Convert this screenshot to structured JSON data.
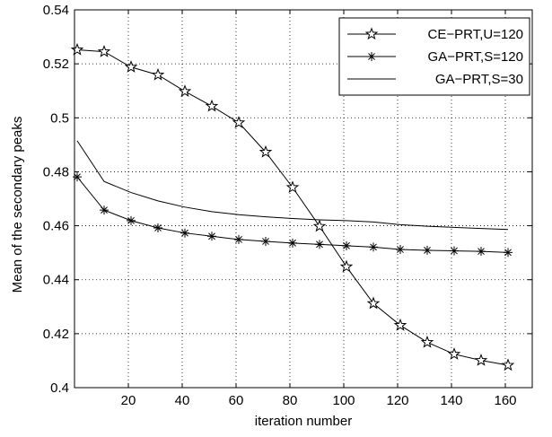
{
  "chart_data": {
    "type": "line",
    "title": "",
    "xlabel": "iteration number",
    "ylabel": "Mean of the secondary peaks",
    "xlim": [
      0,
      170
    ],
    "ylim": [
      0.4,
      0.54
    ],
    "xticks": [
      20,
      40,
      60,
      80,
      100,
      120,
      140,
      160
    ],
    "yticks": [
      0.4,
      0.42,
      0.44,
      0.46,
      0.48,
      0.5,
      0.52,
      0.54
    ],
    "xtick_labels": [
      "20",
      "40",
      "60",
      "80",
      "100",
      "120",
      "140",
      "160"
    ],
    "ytick_labels": [
      "0.4",
      "0.42",
      "0.44",
      "0.46",
      "0.48",
      "0.5",
      "0.52",
      "0.54"
    ],
    "grid": "dotted",
    "legend_position": "top-right",
    "series": [
      {
        "name": "CE−PRT,U=120",
        "marker": "star-outline",
        "color": "#000000",
        "x": [
          1,
          11,
          21,
          31,
          41,
          51,
          61,
          71,
          81,
          91,
          101,
          111,
          121,
          131,
          141,
          151,
          161
        ],
        "y": [
          0.5252,
          0.5245,
          0.5188,
          0.5159,
          0.5098,
          0.5043,
          0.4982,
          0.4873,
          0.4742,
          0.4598,
          0.4448,
          0.4312,
          0.4231,
          0.4168,
          0.4124,
          0.4101,
          0.4083
        ]
      },
      {
        "name": "GA−PRT,S=120",
        "marker": "asterisk",
        "color": "#000000",
        "x": [
          1,
          11,
          21,
          31,
          41,
          51,
          61,
          71,
          81,
          91,
          101,
          111,
          121,
          131,
          141,
          151,
          161
        ],
        "y": [
          0.4781,
          0.4658,
          0.4619,
          0.4592,
          0.4573,
          0.4561,
          0.4549,
          0.4542,
          0.4536,
          0.4531,
          0.4526,
          0.4521,
          0.4512,
          0.4509,
          0.4507,
          0.4505,
          0.4501
        ]
      },
      {
        "name": "GA−PRT,S=30",
        "marker": "none",
        "color": "#000000",
        "x": [
          1,
          11,
          21,
          31,
          41,
          51,
          61,
          71,
          81,
          91,
          101,
          111,
          121,
          131,
          141,
          151,
          161
        ],
        "y": [
          0.4915,
          0.4764,
          0.4723,
          0.4692,
          0.4669,
          0.4652,
          0.4641,
          0.4633,
          0.4627,
          0.4622,
          0.4619,
          0.4614,
          0.4604,
          0.4598,
          0.4594,
          0.459,
          0.4586
        ]
      }
    ]
  }
}
